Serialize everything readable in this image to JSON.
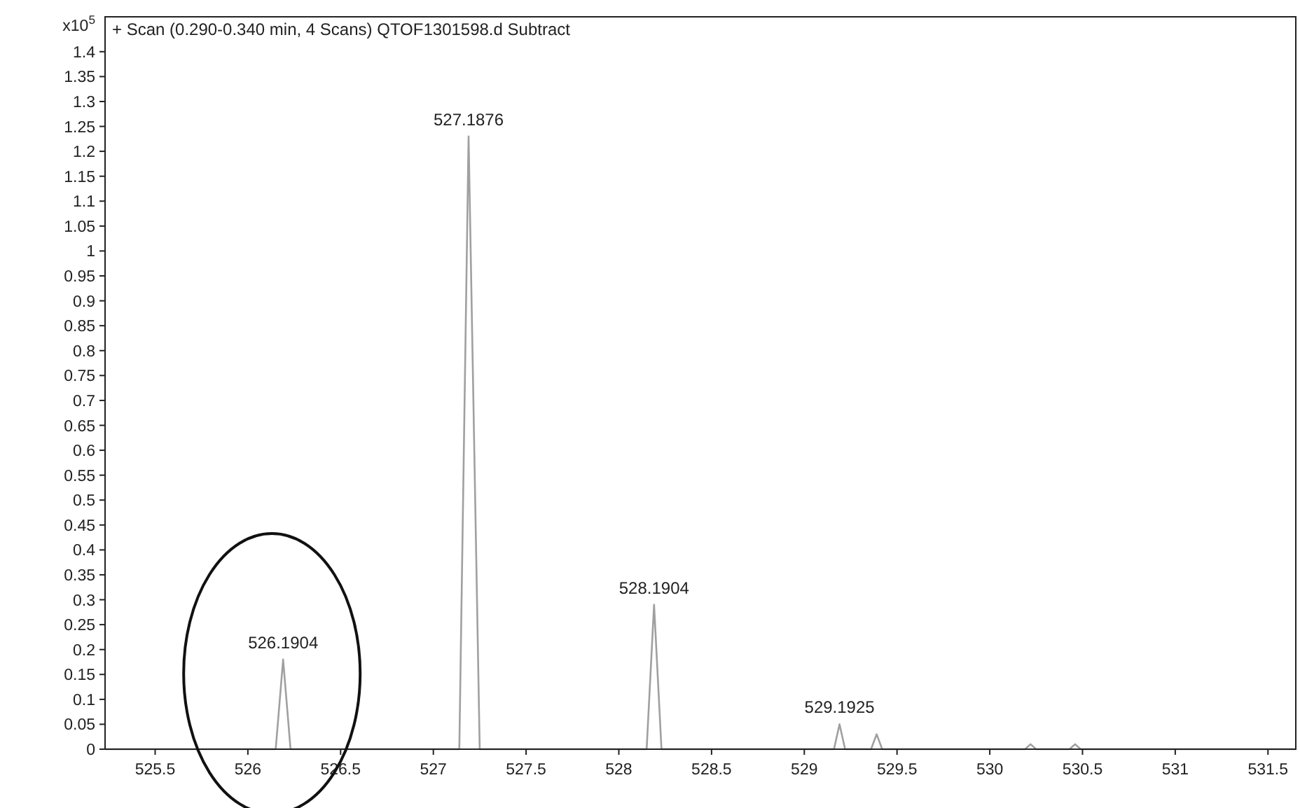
{
  "chart_data": {
    "type": "line",
    "title": "+ Scan (0.290-0.340 min, 4 Scans) QTOF1301598.d  Subtract",
    "ylabel": "x10$^{5}$",
    "xlim": [
      525.23,
      531.65
    ],
    "xticks": [
      525.5,
      526,
      526.5,
      527,
      527.5,
      528,
      528.5,
      529,
      529.5,
      530,
      530.5,
      531,
      531.5
    ],
    "ylim": [
      0,
      1.47
    ],
    "yticks": [
      0,
      0.05,
      0.1,
      0.15,
      0.2,
      0.25,
      0.3,
      0.35,
      0.4,
      0.45,
      0.5,
      0.55,
      0.6,
      0.65,
      0.7,
      0.75,
      0.8,
      0.85,
      0.9,
      0.95,
      1,
      1.05,
      1.1,
      1.15,
      1.2,
      1.25,
      1.3,
      1.35,
      1.4
    ],
    "grid": false,
    "marker": "none",
    "line_style": "solid",
    "series": [
      {
        "color": "#a0a0a0",
        "x": [
          525.23,
          526.15,
          526.19,
          526.23,
          527.14,
          527.19,
          527.25,
          528.15,
          528.19,
          528.23,
          529.16,
          529.19,
          529.22,
          529.36,
          529.39,
          529.42,
          530.19,
          530.22,
          530.25,
          530.43,
          530.46,
          530.49,
          531.65
        ],
        "values": [
          0,
          0,
          0.18,
          0,
          0,
          1.23,
          0,
          0,
          0.29,
          0,
          0,
          0.05,
          0,
          0,
          0.03,
          0,
          0,
          0.01,
          0,
          0,
          0.01,
          0,
          0
        ]
      }
    ],
    "annotations": [
      {
        "text": "526.1904",
        "x": 526.19,
        "y": 0.18
      },
      {
        "text": "527.1876",
        "x": 527.19,
        "y": 1.23
      },
      {
        "text": "528.1904",
        "x": 528.19,
        "y": 0.29
      },
      {
        "text": "529.1925",
        "x": 529.19,
        "y": 0.05
      }
    ]
  }
}
